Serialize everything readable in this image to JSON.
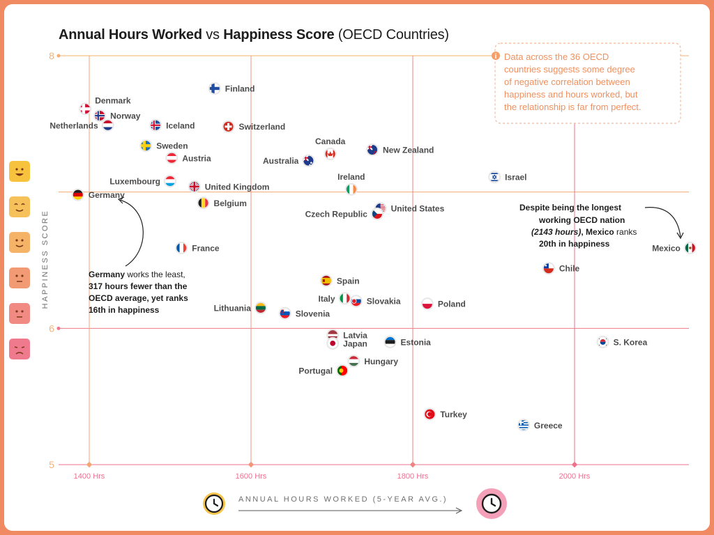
{
  "title": {
    "part1": "Annual Hours Worked",
    "part2": " vs ",
    "part3": "Happiness Score",
    "part4": " (OECD Countries)"
  },
  "colors": {
    "background": "#f08a62",
    "orange": "#f5b06f",
    "pink": "#ee6f8f",
    "text": "#4c4c4c"
  },
  "chart_data": {
    "type": "scatter",
    "title": "Annual Hours Worked vs Happiness Score (OECD Countries)",
    "xlabel": "ANNUAL HOURS WORKED (5-YEAR AVG.)",
    "ylabel": "HAPPINESS SCORE",
    "xlim": [
      1380,
      2145
    ],
    "ylim": [
      5,
      8
    ],
    "x_ticks": [
      1400,
      1600,
      1800,
      2000
    ],
    "x_tick_labels": [
      "1400 Hrs",
      "1600 Hrs",
      "1800 Hrs",
      "2000 Hrs"
    ],
    "y_ticks": [
      5,
      6,
      8
    ],
    "y_tick_labels": [
      "5",
      "6",
      "8"
    ],
    "grid": true,
    "points": [
      {
        "name": "Finland",
        "x": 1555,
        "y": 7.76,
        "flag": "finland",
        "pos": "right"
      },
      {
        "name": "Denmark",
        "x": 1395,
        "y": 7.61,
        "flag": "denmark",
        "pos": "above"
      },
      {
        "name": "Norway",
        "x": 1413,
        "y": 7.56,
        "flag": "norway",
        "pos": "right"
      },
      {
        "name": "Netherlands",
        "x": 1423,
        "y": 7.49,
        "flag": "netherlands",
        "pos": "left"
      },
      {
        "name": "Iceland",
        "x": 1482,
        "y": 7.49,
        "flag": "iceland",
        "pos": "right"
      },
      {
        "name": "Switzerland",
        "x": 1572,
        "y": 7.48,
        "flag": "switzerland",
        "pos": "right"
      },
      {
        "name": "Sweden",
        "x": 1470,
        "y": 7.34,
        "flag": "sweden",
        "pos": "right"
      },
      {
        "name": "Austria",
        "x": 1502,
        "y": 7.25,
        "flag": "austria",
        "pos": "right"
      },
      {
        "name": "Canada",
        "x": 1698,
        "y": 7.28,
        "flag": "canada",
        "pos": "above"
      },
      {
        "name": "New Zealand",
        "x": 1750,
        "y": 7.31,
        "flag": "newzealand",
        "pos": "right"
      },
      {
        "name": "Australia",
        "x": 1671,
        "y": 7.23,
        "flag": "australia",
        "pos": "left"
      },
      {
        "name": "Israel",
        "x": 1901,
        "y": 7.11,
        "flag": "israel",
        "pos": "right"
      },
      {
        "name": "Luxembourg",
        "x": 1500,
        "y": 7.08,
        "flag": "luxembourg",
        "pos": "left"
      },
      {
        "name": "United Kingdom",
        "x": 1530,
        "y": 7.04,
        "flag": "uk",
        "pos": "right"
      },
      {
        "name": "Ireland",
        "x": 1724,
        "y": 7.02,
        "flag": "ireland",
        "pos": "above"
      },
      {
        "name": "Germany",
        "x": 1386,
        "y": 6.98,
        "flag": "germany",
        "pos": "right"
      },
      {
        "name": "Belgium",
        "x": 1541,
        "y": 6.92,
        "flag": "belgium",
        "pos": "right"
      },
      {
        "name": "United States",
        "x": 1760,
        "y": 6.88,
        "flag": "usa",
        "pos": "right"
      },
      {
        "name": "Czech Republic",
        "x": 1756,
        "y": 6.84,
        "flag": "czech",
        "pos": "left"
      },
      {
        "name": "France",
        "x": 1514,
        "y": 6.59,
        "flag": "france",
        "pos": "right"
      },
      {
        "name": "Mexico",
        "x": 2143,
        "y": 6.59,
        "flag": "mexico",
        "pos": "left"
      },
      {
        "name": "Chile",
        "x": 1968,
        "y": 6.44,
        "flag": "chile",
        "pos": "right"
      },
      {
        "name": "Spain",
        "x": 1693,
        "y": 6.35,
        "flag": "spain",
        "pos": "right"
      },
      {
        "name": "Italy",
        "x": 1716,
        "y": 6.22,
        "flag": "italy",
        "pos": "left"
      },
      {
        "name": "Slovakia",
        "x": 1730,
        "y": 6.2,
        "flag": "slovakia",
        "pos": "right"
      },
      {
        "name": "Poland",
        "x": 1818,
        "y": 6.18,
        "flag": "poland",
        "pos": "right"
      },
      {
        "name": "Lithuania",
        "x": 1612,
        "y": 6.15,
        "flag": "lithuania",
        "pos": "left"
      },
      {
        "name": "Slovenia",
        "x": 1642,
        "y": 6.11,
        "flag": "slovenia",
        "pos": "right"
      },
      {
        "name": "Latvia",
        "x": 1701,
        "y": 5.95,
        "flag": "latvia",
        "pos": "right"
      },
      {
        "name": "Japan",
        "x": 1701,
        "y": 5.89,
        "flag": "japan",
        "pos": "right"
      },
      {
        "name": "Estonia",
        "x": 1772,
        "y": 5.9,
        "flag": "estonia",
        "pos": "right"
      },
      {
        "name": "S. Korea",
        "x": 2035,
        "y": 5.9,
        "flag": "korea",
        "pos": "right"
      },
      {
        "name": "Hungary",
        "x": 1727,
        "y": 5.76,
        "flag": "hungary",
        "pos": "right"
      },
      {
        "name": "Portugal",
        "x": 1713,
        "y": 5.69,
        "flag": "portugal",
        "pos": "left"
      },
      {
        "name": "Turkey",
        "x": 1821,
        "y": 5.37,
        "flag": "turkey",
        "pos": "right"
      },
      {
        "name": "Greece",
        "x": 1937,
        "y": 5.29,
        "flag": "greece",
        "pos": "right"
      }
    ],
    "annotations": {
      "callout": [
        "Data across the 36 OECD",
        "countries suggests some degree",
        "of negative correlation between",
        "happiness and hours worked, but",
        "the relationship is far from perfect."
      ],
      "mexico_note": {
        "line1": "Despite being the longest",
        "line2": "working OECD nation",
        "line3a": "(2143 hours)",
        "line3b": ", ",
        "line3c": "Mexico",
        "line3d": " ranks",
        "line4": "20th in happiness"
      },
      "germany_note": {
        "line1a": "Germany",
        "line1b": " works the least,",
        "line2": "317 hours fewer than the",
        "line3": "OECD average, yet ranks",
        "line4": "16th in happiness"
      }
    }
  }
}
